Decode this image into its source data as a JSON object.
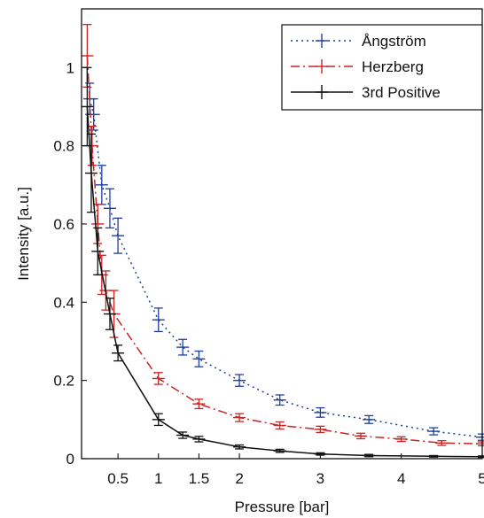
{
  "chart_data": {
    "type": "line",
    "xlabel": "Pressure [bar]",
    "ylabel": "Intensity [a.u.]",
    "xlim": [
      0.05,
      5.0
    ],
    "ylim": [
      0,
      1.15
    ],
    "xticks": [
      0.5,
      1,
      1.5,
      2,
      3,
      4,
      5
    ],
    "xtick_labels": [
      "0.5",
      "1",
      "1.5",
      "2",
      "3",
      "4",
      "5"
    ],
    "yticks": [
      0,
      0.2,
      0.4,
      0.6,
      0.8,
      1
    ],
    "ytick_labels": [
      "0",
      "0.2",
      "0.4",
      "0.6",
      "0.8",
      "1"
    ],
    "grid": false,
    "legend_position": "top-right",
    "series": [
      {
        "name": "Ångström",
        "color": "#1f3fa0",
        "linestyle": "dotted",
        "points": [
          {
            "x": 0.15,
            "y": 0.92,
            "err": 0.04
          },
          {
            "x": 0.2,
            "y": 0.88,
            "err": 0.04
          },
          {
            "x": 0.3,
            "y": 0.7,
            "err": 0.05
          },
          {
            "x": 0.4,
            "y": 0.64,
            "err": 0.05
          },
          {
            "x": 0.5,
            "y": 0.57,
            "err": 0.045
          },
          {
            "x": 1.0,
            "y": 0.355,
            "err": 0.03
          },
          {
            "x": 1.3,
            "y": 0.285,
            "err": 0.02
          },
          {
            "x": 1.5,
            "y": 0.255,
            "err": 0.02
          },
          {
            "x": 2.0,
            "y": 0.2,
            "err": 0.015
          },
          {
            "x": 2.5,
            "y": 0.15,
            "err": 0.013
          },
          {
            "x": 3.0,
            "y": 0.118,
            "err": 0.012
          },
          {
            "x": 3.6,
            "y": 0.1,
            "err": 0.01
          },
          {
            "x": 4.4,
            "y": 0.07,
            "err": 0.009
          },
          {
            "x": 5.0,
            "y": 0.055,
            "err": 0.008
          }
        ]
      },
      {
        "name": "Herzberg",
        "color": "#cc2222",
        "linestyle": "dashdot",
        "points": [
          {
            "x": 0.12,
            "y": 1.03,
            "err": 0.08
          },
          {
            "x": 0.18,
            "y": 0.8,
            "err": 0.05
          },
          {
            "x": 0.25,
            "y": 0.6,
            "err": 0.05
          },
          {
            "x": 0.3,
            "y": 0.47,
            "err": 0.05
          },
          {
            "x": 0.35,
            "y": 0.43,
            "err": 0.05
          },
          {
            "x": 0.45,
            "y": 0.37,
            "err": 0.06
          },
          {
            "x": 1.0,
            "y": 0.205,
            "err": 0.015
          },
          {
            "x": 1.5,
            "y": 0.14,
            "err": 0.012
          },
          {
            "x": 2.0,
            "y": 0.105,
            "err": 0.01
          },
          {
            "x": 2.5,
            "y": 0.085,
            "err": 0.009
          },
          {
            "x": 3.0,
            "y": 0.075,
            "err": 0.008
          },
          {
            "x": 3.5,
            "y": 0.058,
            "err": 0.007
          },
          {
            "x": 4.0,
            "y": 0.05,
            "err": 0.006
          },
          {
            "x": 4.5,
            "y": 0.04,
            "err": 0.006
          },
          {
            "x": 5.0,
            "y": 0.038,
            "err": 0.005
          }
        ]
      },
      {
        "name": "3rd Positive",
        "color": "#111111",
        "linestyle": "solid",
        "points": [
          {
            "x": 0.12,
            "y": 0.9,
            "err": 0.1
          },
          {
            "x": 0.17,
            "y": 0.73,
            "err": 0.1
          },
          {
            "x": 0.25,
            "y": 0.53,
            "err": 0.06
          },
          {
            "x": 0.4,
            "y": 0.37,
            "err": 0.04
          },
          {
            "x": 0.5,
            "y": 0.27,
            "err": 0.02
          },
          {
            "x": 1.0,
            "y": 0.1,
            "err": 0.015
          },
          {
            "x": 1.3,
            "y": 0.06,
            "err": 0.008
          },
          {
            "x": 1.5,
            "y": 0.05,
            "err": 0.007
          },
          {
            "x": 2.0,
            "y": 0.03,
            "err": 0.005
          },
          {
            "x": 2.5,
            "y": 0.02,
            "err": 0.004
          },
          {
            "x": 3.0,
            "y": 0.012,
            "err": 0.003
          },
          {
            "x": 3.6,
            "y": 0.008,
            "err": 0.003
          },
          {
            "x": 4.4,
            "y": 0.006,
            "err": 0.002
          },
          {
            "x": 5.0,
            "y": 0.005,
            "err": 0.002
          }
        ]
      }
    ]
  }
}
